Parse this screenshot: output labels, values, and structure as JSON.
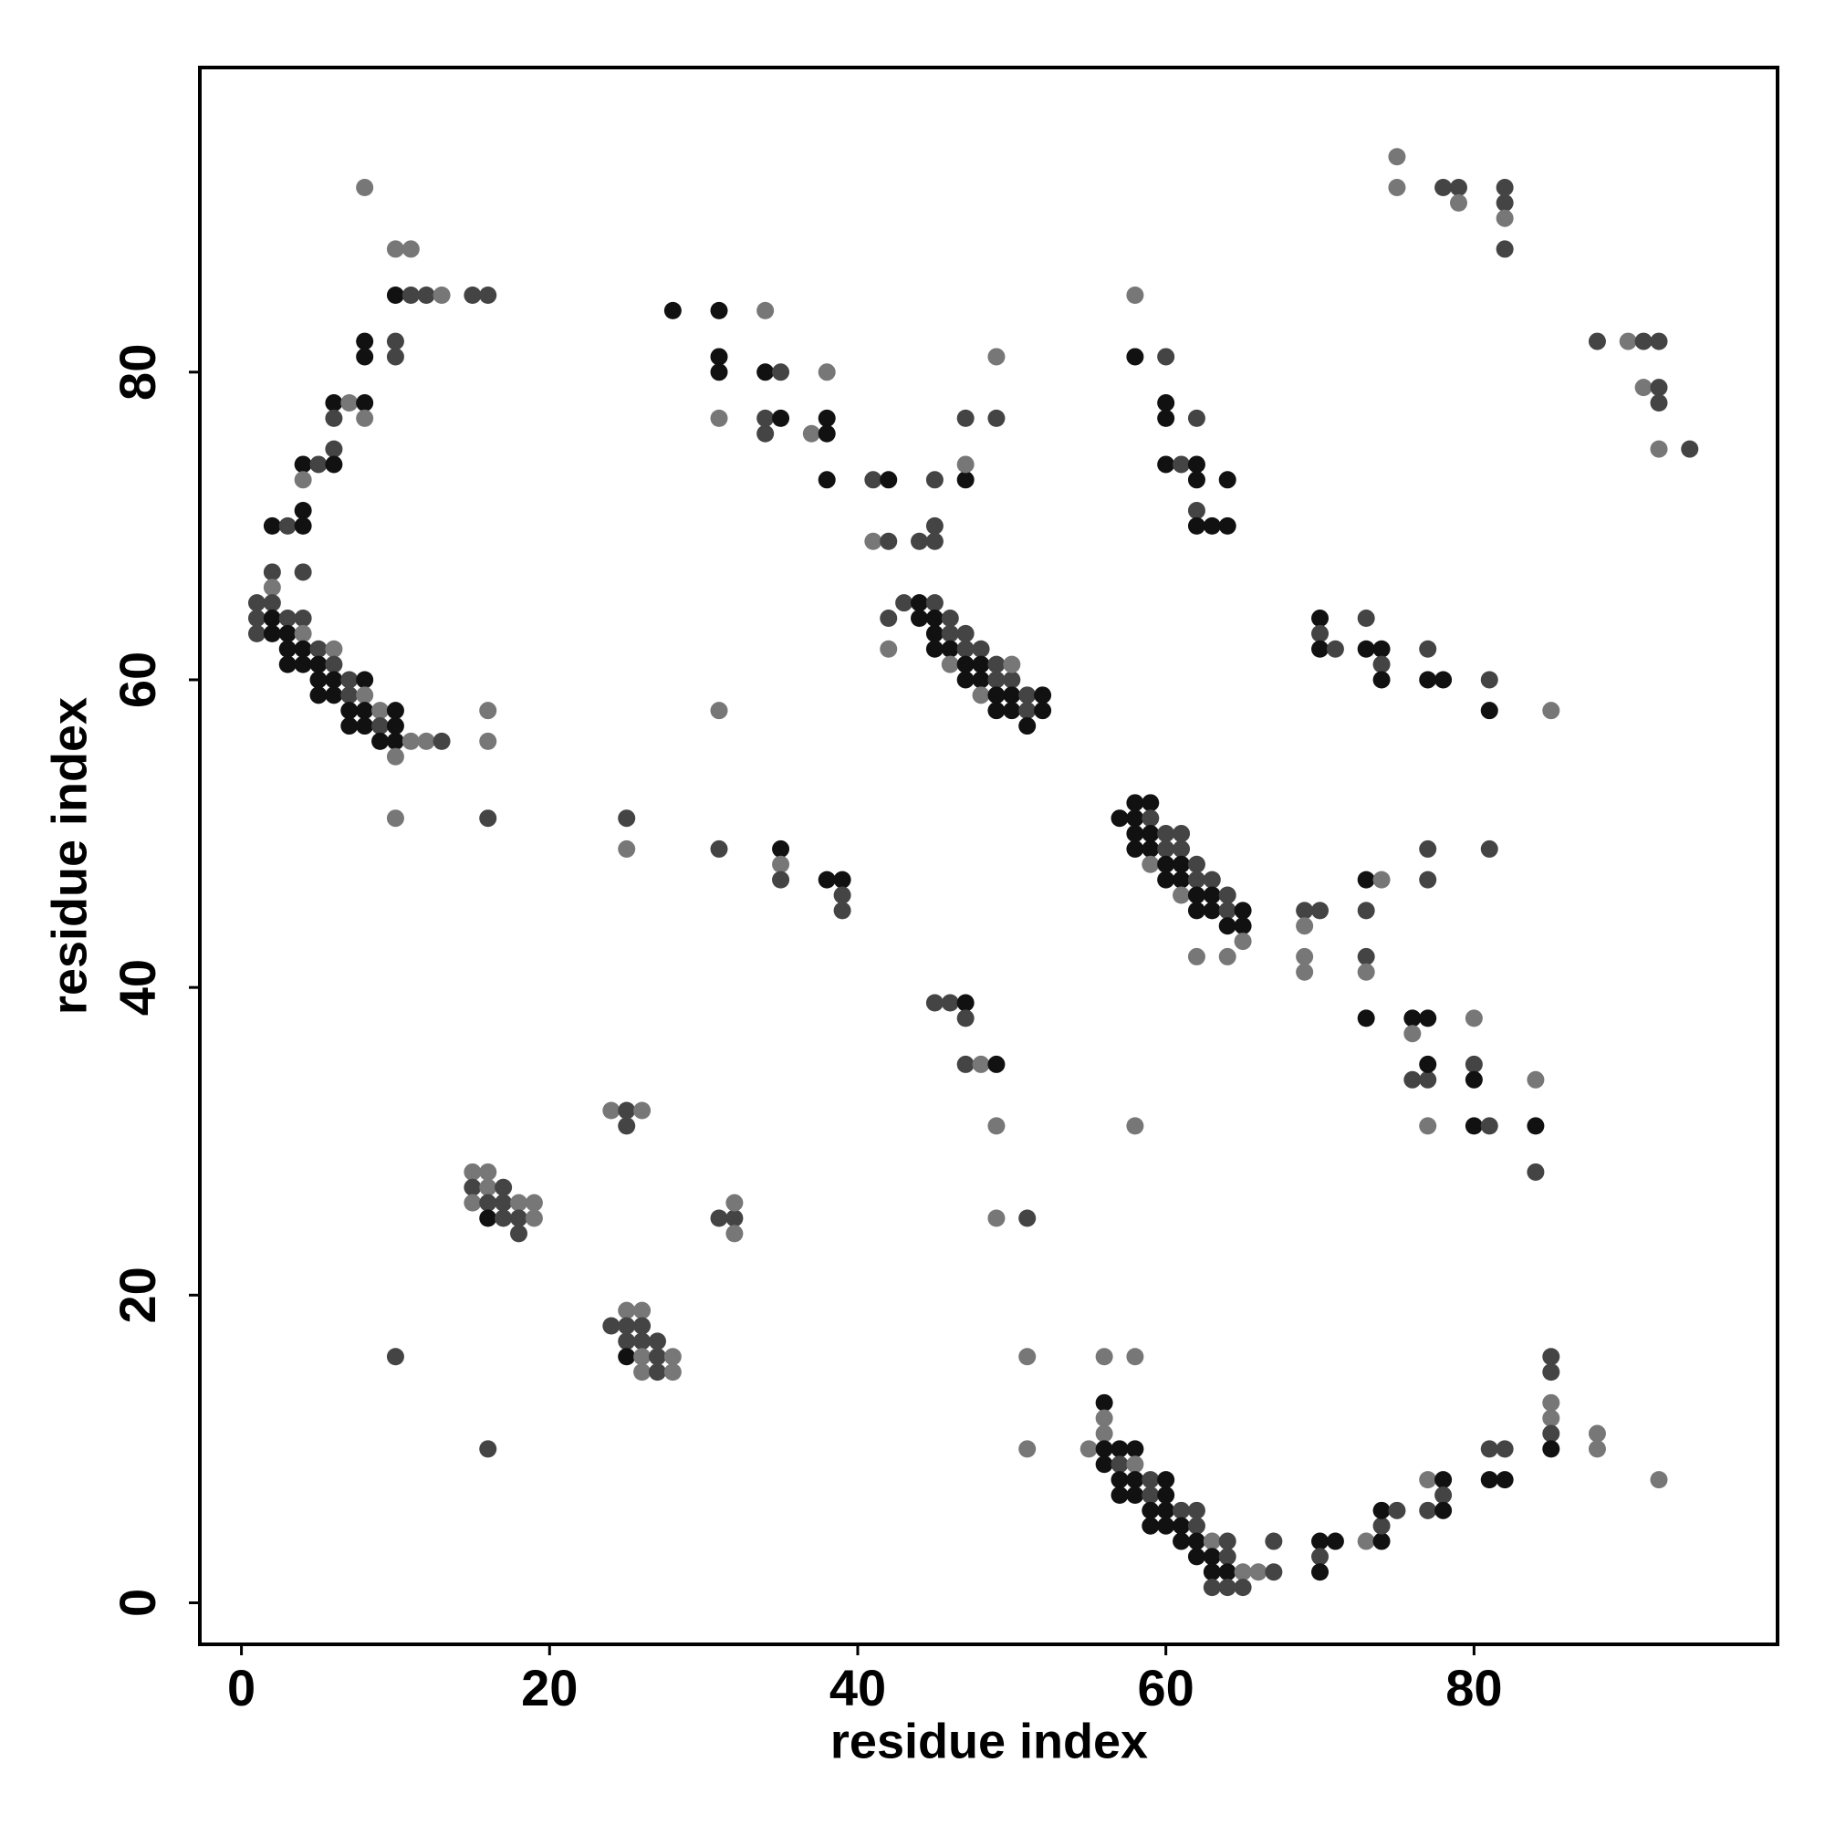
{
  "chart_data": {
    "type": "scatter",
    "xlabel": "residue index",
    "ylabel": "residue index",
    "xlim": [
      -2.7,
      99.7
    ],
    "ylim": [
      -2.7,
      99.8
    ],
    "xticks": [
      0,
      20,
      40,
      60,
      80
    ],
    "yticks": [
      0,
      20,
      40,
      60,
      80
    ],
    "x": [
      8,
      10,
      11,
      10,
      11,
      12,
      13,
      15,
      16,
      8,
      10,
      8,
      10,
      6,
      7,
      8,
      8,
      6,
      6,
      4,
      5,
      6,
      4,
      4,
      2,
      3,
      4,
      4,
      2,
      2,
      1,
      2,
      1,
      2,
      3,
      4,
      1,
      2,
      3,
      4,
      3,
      4,
      5,
      6,
      3,
      4,
      5,
      6,
      5,
      6,
      7,
      8,
      5,
      6,
      7,
      8,
      7,
      8,
      9,
      10,
      7,
      8,
      9,
      10,
      9,
      10,
      11,
      12,
      13,
      10,
      16,
      16,
      10,
      16,
      10,
      16,
      15,
      16,
      15,
      16,
      17,
      15,
      16,
      17,
      18,
      19,
      16,
      17,
      18,
      19,
      18,
      24,
      25,
      26,
      25,
      24,
      25,
      26,
      25,
      26,
      25,
      26,
      27,
      25,
      26,
      27,
      28,
      26,
      27,
      28,
      25,
      25,
      31,
      35,
      35,
      35,
      38,
      39,
      39,
      39,
      31,
      32,
      32,
      32,
      31,
      28,
      31,
      34,
      31,
      31,
      34,
      35,
      31,
      34,
      35,
      34,
      37,
      38,
      38,
      38,
      38,
      41,
      42,
      41,
      42,
      44,
      45,
      45,
      45,
      47,
      47,
      47,
      49,
      49,
      42,
      42,
      43,
      44,
      45,
      44,
      45,
      46,
      45,
      46,
      47,
      45,
      46,
      47,
      48,
      46,
      47,
      48,
      49,
      47,
      48,
      49,
      50,
      50,
      48,
      49,
      50,
      51,
      52,
      49,
      50,
      51,
      52,
      51,
      45,
      46,
      47,
      47,
      47,
      48,
      49,
      49,
      49,
      51,
      51,
      51,
      58,
      58,
      60,
      60,
      60,
      62,
      60,
      61,
      62,
      62,
      64,
      62,
      62,
      63,
      64,
      57,
      58,
      59,
      58,
      59,
      58,
      59,
      60,
      61,
      58,
      59,
      60,
      61,
      59,
      60,
      61,
      62,
      60,
      61,
      62,
      63,
      61,
      62,
      63,
      64,
      62,
      63,
      64,
      65,
      64,
      65,
      65,
      62,
      64,
      69,
      70,
      69,
      69,
      69,
      73,
      74,
      73,
      73,
      73,
      73,
      76,
      77,
      76,
      76,
      77,
      77,
      77,
      80,
      80,
      80,
      80,
      81,
      84,
      84,
      84,
      77,
      77,
      81,
      58,
      70,
      70,
      70,
      71,
      73,
      73,
      74,
      74,
      74,
      77,
      77,
      78,
      81,
      81,
      85,
      75,
      75,
      78,
      79,
      79,
      82,
      82,
      82,
      82,
      88,
      90,
      91,
      92,
      91,
      92,
      92,
      92,
      94,
      55,
      56,
      58,
      56,
      56,
      56,
      56,
      57,
      58,
      56,
      57,
      58,
      57,
      58,
      59,
      60,
      57,
      58,
      59,
      60,
      59,
      60,
      61,
      62,
      59,
      60,
      61,
      62,
      61,
      62,
      63,
      64,
      62,
      63,
      64,
      63,
      64,
      65,
      66,
      67,
      63,
      64,
      65,
      67,
      70,
      71,
      70,
      70,
      73,
      74,
      74,
      74,
      75,
      77,
      78,
      78,
      77,
      78,
      81,
      82,
      81,
      82,
      85,
      85,
      85,
      85,
      85,
      85,
      88,
      88,
      92
    ],
    "y": [
      92,
      88,
      88,
      85,
      85,
      85,
      85,
      85,
      85,
      82,
      82,
      81,
      81,
      78,
      78,
      78,
      77,
      77,
      75,
      74,
      74,
      74,
      73,
      71,
      70,
      70,
      70,
      67,
      67,
      66,
      65,
      65,
      64,
      64,
      64,
      64,
      63,
      63,
      63,
      63,
      62,
      62,
      62,
      62,
      61,
      61,
      61,
      61,
      60,
      60,
      60,
      60,
      59,
      59,
      59,
      59,
      58,
      58,
      58,
      58,
      57,
      57,
      57,
      57,
      56,
      56,
      56,
      56,
      56,
      55,
      58,
      56,
      51,
      51,
      16,
      10,
      28,
      28,
      27,
      27,
      27,
      26,
      26,
      26,
      26,
      26,
      25,
      25,
      25,
      25,
      24,
      32,
      32,
      32,
      31,
      18,
      19,
      19,
      18,
      18,
      17,
      17,
      17,
      16,
      16,
      16,
      16,
      15,
      15,
      15,
      51,
      49,
      49,
      49,
      48,
      47,
      47,
      47,
      46,
      45,
      25,
      25,
      26,
      24,
      58,
      84,
      84,
      84,
      81,
      80,
      80,
      80,
      77,
      77,
      77,
      76,
      76,
      77,
      76,
      80,
      73,
      73,
      73,
      69,
      69,
      69,
      69,
      70,
      73,
      73,
      74,
      77,
      77,
      81,
      64,
      62,
      65,
      65,
      65,
      64,
      64,
      64,
      63,
      63,
      63,
      62,
      62,
      62,
      62,
      61,
      61,
      61,
      61,
      60,
      60,
      60,
      60,
      61,
      59,
      59,
      59,
      59,
      59,
      58,
      58,
      58,
      58,
      57,
      39,
      39,
      39,
      38,
      35,
      35,
      35,
      31,
      25,
      25,
      16,
      10,
      85,
      81,
      81,
      78,
      77,
      77,
      74,
      74,
      74,
      73,
      73,
      71,
      70,
      70,
      70,
      51,
      52,
      52,
      51,
      51,
      50,
      50,
      50,
      50,
      49,
      49,
      49,
      49,
      48,
      48,
      48,
      48,
      47,
      47,
      47,
      47,
      46,
      46,
      46,
      46,
      45,
      45,
      45,
      45,
      44,
      44,
      43,
      42,
      42,
      45,
      45,
      44,
      42,
      41,
      47,
      47,
      45,
      42,
      41,
      38,
      38,
      38,
      37,
      34,
      34,
      35,
      31,
      38,
      35,
      34,
      31,
      31,
      31,
      34,
      28,
      49,
      47,
      49,
      31,
      64,
      63,
      62,
      62,
      64,
      62,
      62,
      61,
      60,
      62,
      60,
      60,
      60,
      58,
      58,
      94,
      92,
      92,
      92,
      91,
      92,
      91,
      90,
      88,
      82,
      82,
      82,
      82,
      79,
      79,
      78,
      75,
      75,
      10,
      16,
      16,
      13,
      12,
      11,
      10,
      10,
      10,
      9,
      9,
      9,
      8,
      8,
      8,
      8,
      7,
      7,
      7,
      7,
      6,
      6,
      6,
      6,
      5,
      5,
      5,
      5,
      4,
      4,
      4,
      4,
      3,
      3,
      3,
      2,
      2,
      2,
      2,
      2,
      1,
      1,
      1,
      4,
      4,
      4,
      3,
      2,
      4,
      4,
      5,
      6,
      6,
      8,
      8,
      7,
      6,
      6,
      10,
      10,
      8,
      8,
      16,
      15,
      13,
      12,
      11,
      10,
      11,
      10,
      8
    ],
    "colors": [
      "#777",
      "#777",
      "#777",
      "#111",
      "#444",
      "#444",
      "#777",
      "#444",
      "#444",
      "#111",
      "#444",
      "#111",
      "#444",
      "#111",
      "#777",
      "#111",
      "#777",
      "#444",
      "#444",
      "#111",
      "#444",
      "#111",
      "#777",
      "#111",
      "#111",
      "#444",
      "#111",
      "#444",
      "#444",
      "#777",
      "#444",
      "#444",
      "#444",
      "#111",
      "#444",
      "#444",
      "#444",
      "#111",
      "#111",
      "#777",
      "#111",
      "#111",
      "#444",
      "#777",
      "#111",
      "#111",
      "#111",
      "#444",
      "#111",
      "#111",
      "#444",
      "#111",
      "#111",
      "#111",
      "#444",
      "#777",
      "#111",
      "#111",
      "#777",
      "#111",
      "#111",
      "#111",
      "#444",
      "#111",
      "#111",
      "#111",
      "#777",
      "#777",
      "#444",
      "#777",
      "#777",
      "#777",
      "#777",
      "#444",
      "#444",
      "#444",
      "#777",
      "#777",
      "#444",
      "#777",
      "#444",
      "#777",
      "#444",
      "#444",
      "#777",
      "#777",
      "#111",
      "#444",
      "#444",
      "#777",
      "#444",
      "#777",
      "#444",
      "#777",
      "#444",
      "#444",
      "#777",
      "#777",
      "#444",
      "#444",
      "#444",
      "#444",
      "#444",
      "#111",
      "#777",
      "#444",
      "#777",
      "#777",
      "#444",
      "#777",
      "#444",
      "#777",
      "#444",
      "#111",
      "#777",
      "#444",
      "#111",
      "#111",
      "#444",
      "#444",
      "#444",
      "#444",
      "#777",
      "#777",
      "#777",
      "#111",
      "#111",
      "#777",
      "#111",
      "#111",
      "#111",
      "#444",
      "#777",
      "#444",
      "#111",
      "#444",
      "#777",
      "#111",
      "#111",
      "#777",
      "#111",
      "#444",
      "#111",
      "#777",
      "#444",
      "#444",
      "#444",
      "#444",
      "#444",
      "#111",
      "#777",
      "#444",
      "#444",
      "#777",
      "#444",
      "#777",
      "#444",
      "#111",
      "#444",
      "#111",
      "#111",
      "#444",
      "#111",
      "#444",
      "#444",
      "#111",
      "#111",
      "#444",
      "#444",
      "#777",
      "#111",
      "#111",
      "#444",
      "#111",
      "#111",
      "#444",
      "#444",
      "#777",
      "#777",
      "#111",
      "#111",
      "#444",
      "#111",
      "#111",
      "#111",
      "#444",
      "#111",
      "#111",
      "#444",
      "#444",
      "#111",
      "#444",
      "#444",
      "#777",
      "#111",
      "#777",
      "#777",
      "#444",
      "#777",
      "#777",
      "#777",
      "#111",
      "#444",
      "#111",
      "#111",
      "#444",
      "#111",
      "#444",
      "#111",
      "#111",
      "#111",
      "#444",
      "#111",
      "#111",
      "#111",
      "#111",
      "#111",
      "#111",
      "#111",
      "#444",
      "#111",
      "#111",
      "#444",
      "#444",
      "#111",
      "#111",
      "#444",
      "#444",
      "#777",
      "#111",
      "#111",
      "#444",
      "#111",
      "#111",
      "#444",
      "#444",
      "#777",
      "#111",
      "#111",
      "#444",
      "#111",
      "#111",
      "#444",
      "#111",
      "#111",
      "#111",
      "#777",
      "#777",
      "#777",
      "#444",
      "#444",
      "#777",
      "#777",
      "#777",
      "#111",
      "#777",
      "#444",
      "#444",
      "#777",
      "#111",
      "#111",
      "#111",
      "#777",
      "#444",
      "#444",
      "#111",
      "#777",
      "#777",
      "#444",
      "#111",
      "#111",
      "#444",
      "#111",
      "#777",
      "#444",
      "#444",
      "#444",
      "#444",
      "#777",
      "#111",
      "#444",
      "#111",
      "#444",
      "#444",
      "#111",
      "#111",
      "#444",
      "#111",
      "#444",
      "#111",
      "#111",
      "#444",
      "#111",
      "#777",
      "#777",
      "#777",
      "#444",
      "#444",
      "#777",
      "#444",
      "#444",
      "#777",
      "#444",
      "#444",
      "#777",
      "#444",
      "#444",
      "#777",
      "#444",
      "#444",
      "#777",
      "#444",
      "#777",
      "#777",
      "#777",
      "#111",
      "#777",
      "#777",
      "#111",
      "#111",
      "#111",
      "#111",
      "#444",
      "#777",
      "#111",
      "#111",
      "#444",
      "#111",
      "#111",
      "#111",
      "#444",
      "#111",
      "#111",
      "#111",
      "#444",
      "#444",
      "#111",
      "#111",
      "#111",
      "#444",
      "#111",
      "#111",
      "#777",
      "#444",
      "#111",
      "#111",
      "#444",
      "#111",
      "#111",
      "#777",
      "#777",
      "#444",
      "#444",
      "#444",
      "#444",
      "#444",
      "#111",
      "#111",
      "#444",
      "#111",
      "#777",
      "#111",
      "#444",
      "#111",
      "#444",
      "#777",
      "#111",
      "#444",
      "#444",
      "#111",
      "#444",
      "#444",
      "#111",
      "#111",
      "#444",
      "#444",
      "#777",
      "#777",
      "#444",
      "#111",
      "#777",
      "#777",
      "#777"
    ]
  }
}
